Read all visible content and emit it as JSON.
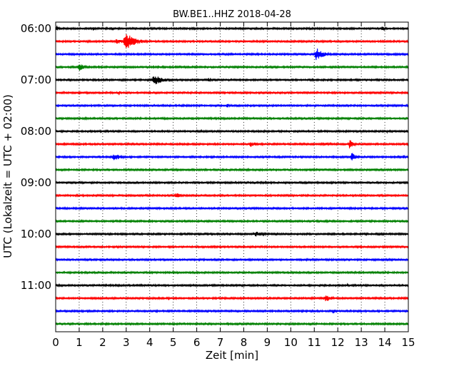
{
  "chart_data": {
    "type": "line",
    "title": "BW.BE1..HHZ 2018-04-28",
    "xlabel": "Zeit  [min]",
    "ylabel": "UTC (Lokalzeit = UTC + 02:00)",
    "xlim": [
      0,
      15
    ],
    "x_ticks": [
      "0",
      "1",
      "2",
      "3",
      "4",
      "5",
      "6",
      "7",
      "8",
      "9",
      "10",
      "11",
      "12",
      "13",
      "14",
      "15"
    ],
    "row_interval_min": 15,
    "y_ticks": [
      {
        "label": "06:00",
        "row": 0
      },
      {
        "label": "07:00",
        "row": 4
      },
      {
        "label": "08:00",
        "row": 8
      },
      {
        "label": "09:00",
        "row": 12
      },
      {
        "label": "10:00",
        "row": 16
      },
      {
        "label": "11:00",
        "row": 20
      }
    ],
    "grid": {
      "vertical_dotted": true
    },
    "colors": [
      "#000000",
      "#ff0000",
      "#0000ff",
      "#008000"
    ],
    "series": [
      {
        "values": [
          {
            "x": 0.05,
            "a": 0.35
          },
          {
            "x": 1.6,
            "a": 0.3
          },
          {
            "x": 2.4,
            "a": 0.25
          },
          {
            "x": 5.7,
            "a": 0.2
          },
          {
            "x": 13.9,
            "a": 0.5
          }
        ]
      },
      {
        "values": [
          {
            "x": 3.0,
            "a": 1.0,
            "w": 0.7
          },
          {
            "x": 2.6,
            "a": 0.35,
            "w": 0.5
          },
          {
            "x": 7.8,
            "a": 0.15
          }
        ]
      },
      {
        "values": [
          {
            "x": 11.1,
            "a": 0.85,
            "w": 0.45
          },
          {
            "x": 11.3,
            "a": 0.3
          }
        ]
      },
      {
        "values": [
          {
            "x": 1.0,
            "a": 0.5,
            "w": 0.4
          },
          {
            "x": 11.3,
            "a": 0.2
          }
        ]
      },
      {
        "values": [
          {
            "x": 4.2,
            "a": 0.6,
            "w": 0.7
          },
          {
            "x": 6.5,
            "a": 0.3
          },
          {
            "x": 1.8,
            "a": 0.15
          }
        ]
      },
      {
        "values": [
          {
            "x": 2.7,
            "a": 0.3
          },
          {
            "x": 9.3,
            "a": 0.12
          }
        ]
      },
      {
        "values": [
          {
            "x": 5.4,
            "a": 0.2
          },
          {
            "x": 7.3,
            "a": 0.35
          }
        ]
      },
      {
        "values": [
          {
            "x": 5.8,
            "a": 0.25
          },
          {
            "x": 14.0,
            "a": 0.15
          }
        ]
      },
      {
        "values": [
          {
            "x": 6.2,
            "a": 0.15
          },
          {
            "x": 14.1,
            "a": 0.15
          }
        ]
      },
      {
        "values": [
          {
            "x": 8.3,
            "a": 0.35,
            "w": 0.4
          },
          {
            "x": 11.4,
            "a": 0.2,
            "w": 0.8
          },
          {
            "x": 12.5,
            "a": 0.55,
            "w": 0.3
          }
        ]
      },
      {
        "values": [
          {
            "x": 2.5,
            "a": 0.45,
            "w": 0.5
          },
          {
            "x": 12.6,
            "a": 0.55,
            "w": 0.3
          },
          {
            "x": 14.8,
            "a": 0.25
          }
        ]
      },
      {
        "values": [
          {
            "x": 11.1,
            "a": 0.2
          }
        ]
      },
      {
        "values": [
          {
            "x": 1.0,
            "a": 0.2
          },
          {
            "x": 8.8,
            "a": 0.15
          }
        ]
      },
      {
        "values": [
          {
            "x": 5.1,
            "a": 0.35,
            "w": 0.4
          },
          {
            "x": 2.8,
            "a": 0.1
          }
        ]
      },
      {
        "values": [
          {
            "x": 1.2,
            "a": 0.12
          },
          {
            "x": 8.0,
            "a": 0.1
          }
        ]
      },
      {
        "values": [
          {
            "x": 5.2,
            "a": 0.15
          }
        ]
      },
      {
        "values": [
          {
            "x": 8.5,
            "a": 0.3,
            "w": 0.8
          },
          {
            "x": 10.1,
            "a": 0.15
          }
        ]
      },
      {
        "values": [
          {
            "x": 3.2,
            "a": 0.12
          },
          {
            "x": 13.0,
            "a": 0.12
          }
        ]
      },
      {
        "values": [
          {
            "x": 8.8,
            "a": 0.15
          }
        ]
      },
      {
        "values": [
          {
            "x": 5.0,
            "a": 0.15
          }
        ]
      },
      {
        "values": [
          {
            "x": 12.4,
            "a": 0.15
          }
        ]
      },
      {
        "values": [
          {
            "x": 4.8,
            "a": 0.25
          },
          {
            "x": 7.2,
            "a": 0.2
          },
          {
            "x": 11.5,
            "a": 0.45,
            "w": 0.35
          }
        ]
      },
      {
        "values": [
          {
            "x": 11.8,
            "a": 0.3,
            "w": 0.3
          }
        ]
      },
      {
        "values": [
          {
            "x": 10.8,
            "a": 0.25
          }
        ]
      }
    ]
  }
}
